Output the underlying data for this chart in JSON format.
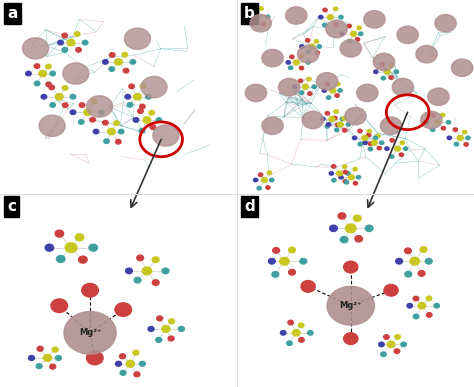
{
  "panels": [
    "a",
    "b",
    "c",
    "d"
  ],
  "label_bg": "#000000",
  "label_fg": "#ffffff",
  "label_fontsize": 11,
  "figure_bg": "#ffffff",
  "circle_color": "#cc0000",
  "circle_linewidth": 2.0,
  "arrow_color": "#333333",
  "figsize": [
    4.74,
    3.87
  ],
  "dpi": 100,
  "mg_color": "#b09090",
  "teal_color": "#40a0a0",
  "yellow_color": "#c8c820",
  "red_color": "#cc4040",
  "blue_color": "#4040aa",
  "white_color": "#ffffff",
  "bond_color": "#cccccc",
  "separator_color": "#dddddd"
}
